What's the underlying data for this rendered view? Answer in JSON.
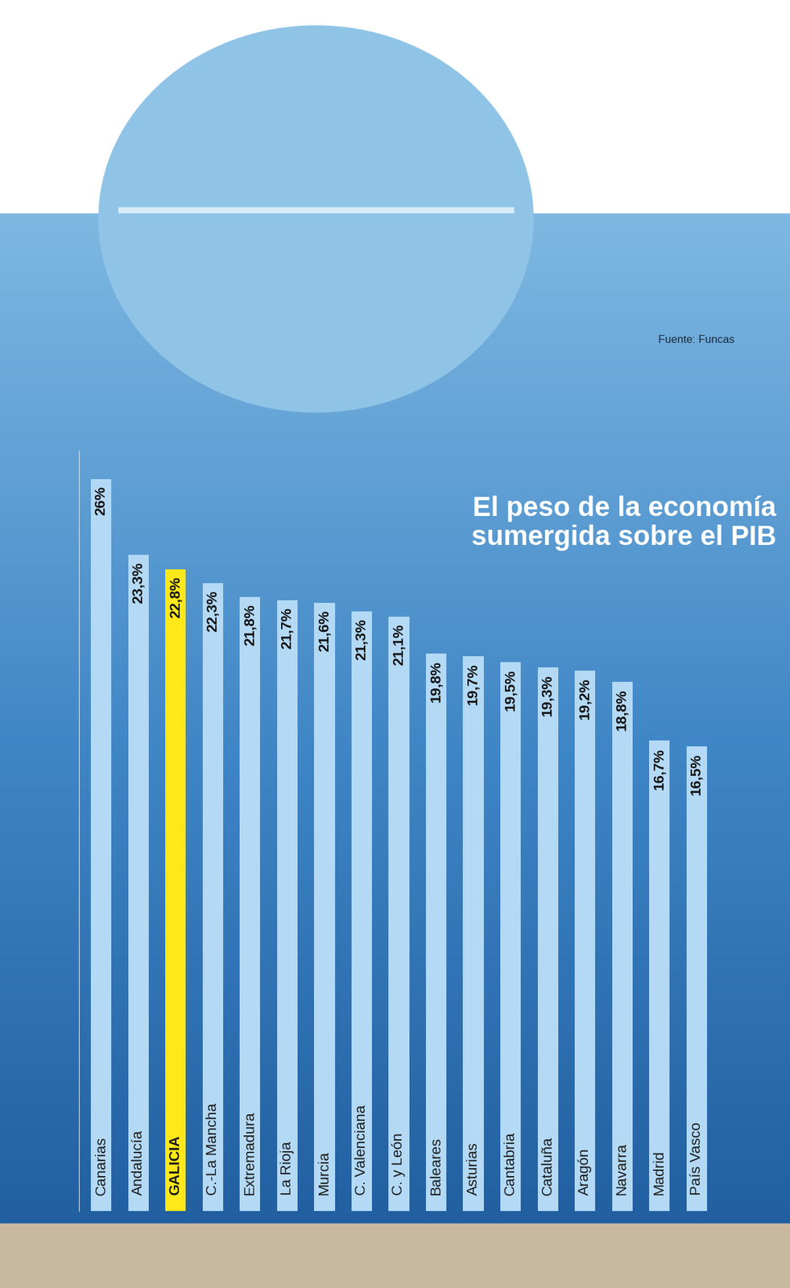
{
  "chart_data": {
    "type": "bar",
    "title": "El peso de la economía sumergida sobre el PIB",
    "source": "Fuente: Funcas",
    "categories": [
      "Canarias",
      "Andalucía",
      "GALICIA",
      "C.-La Mancha",
      "Extremadura",
      "La Rioja",
      "Murcia",
      "C. Valenciana",
      "C. y León",
      "Baleares",
      "Asturias",
      "Cantabria",
      "Cataluña",
      "Aragón",
      "Navarra",
      "Madrid",
      "País Vasco"
    ],
    "values": [
      26,
      23.3,
      22.8,
      22.3,
      21.8,
      21.7,
      21.6,
      21.3,
      21.1,
      19.8,
      19.7,
      19.5,
      19.3,
      19.2,
      18.8,
      16.7,
      16.5
    ],
    "value_labels": [
      "26%",
      "23,3%",
      "22,8%",
      "22,3%",
      "21,8%",
      "21,7%",
      "21,6%",
      "21,3%",
      "21,1%",
      "19,8%",
      "19,7%",
      "19,5%",
      "19,3%",
      "19,2%",
      "18,8%",
      "16,7%",
      "16,5%"
    ],
    "colors": [
      "#b3d9f5",
      "#b3d9f5",
      "#ffe81a",
      "#b3d9f5",
      "#b3d9f5",
      "#b3d9f5",
      "#b3d9f5",
      "#b3d9f5",
      "#b3d9f5",
      "#b3d9f5",
      "#b3d9f5",
      "#b3d9f5",
      "#b3d9f5",
      "#b3d9f5",
      "#b3d9f5",
      "#b3d9f5",
      "#b3d9f5"
    ],
    "ylim": [
      0,
      27
    ],
    "yticks": [],
    "tick_labels": false,
    "data_labels": true,
    "grid": false
  }
}
